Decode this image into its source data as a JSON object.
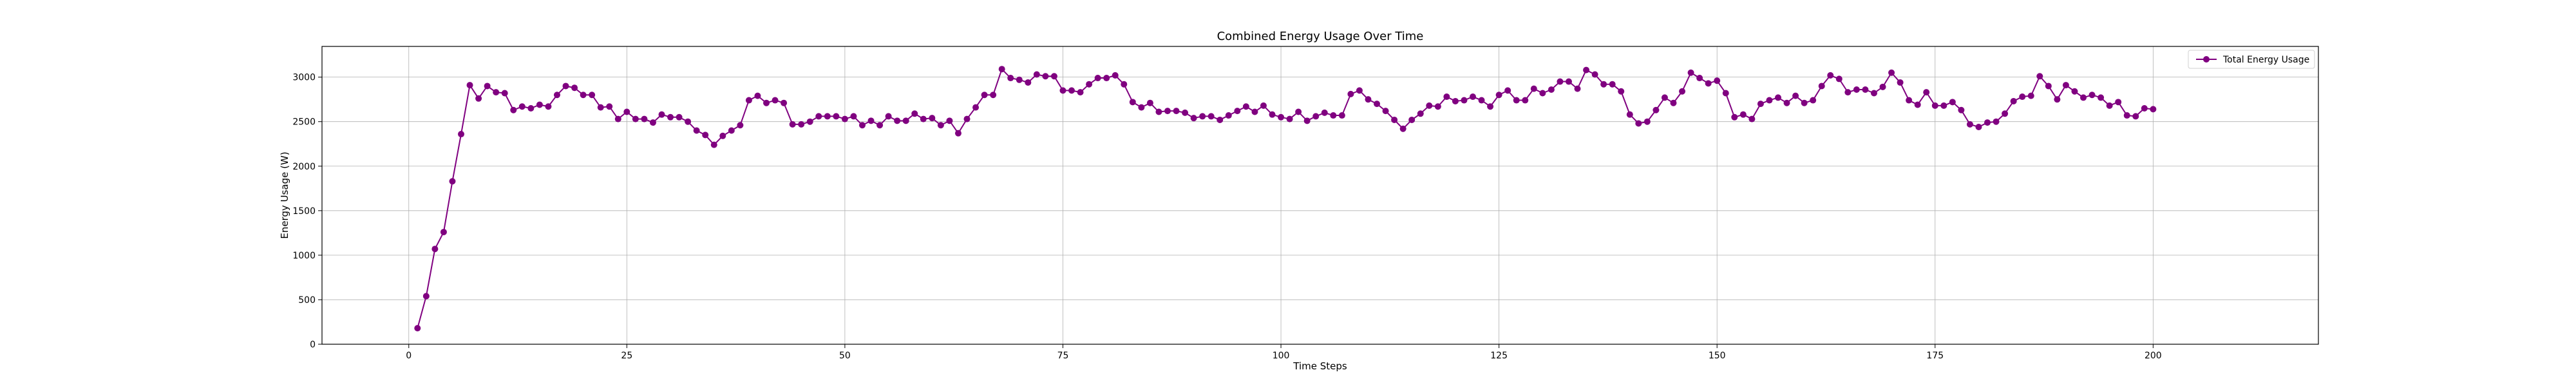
{
  "chart_data": {
    "type": "line",
    "title": "Combined Energy Usage Over Time",
    "xlabel": "Time Steps",
    "ylabel": "Energy Usage (W)",
    "xlim": [
      -9.95,
      218.95
    ],
    "ylim": [
      0,
      3345
    ],
    "x_ticks": [
      0,
      25,
      50,
      75,
      100,
      125,
      150,
      175,
      200
    ],
    "y_ticks": [
      0,
      500,
      1000,
      1500,
      2000,
      2500,
      3000
    ],
    "grid": true,
    "legend": {
      "position": "top-right",
      "entries": [
        "Total Energy Usage"
      ]
    },
    "colors": {
      "line": "#800080",
      "grid": "#b0b0b0",
      "axes": "#000000"
    },
    "series": [
      {
        "name": "Total Energy Usage",
        "marker": "circle",
        "x": [
          1,
          2,
          3,
          4,
          5,
          6,
          7,
          8,
          9,
          10,
          11,
          12,
          13,
          14,
          15,
          16,
          17,
          18,
          19,
          20,
          21,
          22,
          23,
          24,
          25,
          26,
          27,
          28,
          29,
          30,
          31,
          32,
          33,
          34,
          35,
          36,
          37,
          38,
          39,
          40,
          41,
          42,
          43,
          44,
          45,
          46,
          47,
          48,
          49,
          50,
          51,
          52,
          53,
          54,
          55,
          56,
          57,
          58,
          59,
          60,
          61,
          62,
          63,
          64,
          65,
          66,
          67,
          68,
          69,
          70,
          71,
          72,
          73,
          74,
          75,
          76,
          77,
          78,
          79,
          80,
          81,
          82,
          83,
          84,
          85,
          86,
          87,
          88,
          89,
          90,
          91,
          92,
          93,
          94,
          95,
          96,
          97,
          98,
          99,
          100,
          101,
          102,
          103,
          104,
          105,
          106,
          107,
          108,
          109,
          110,
          111,
          112,
          113,
          114,
          115,
          116,
          117,
          118,
          119,
          120,
          121,
          122,
          123,
          124,
          125,
          126,
          127,
          128,
          129,
          130,
          131,
          132,
          133,
          134,
          135,
          136,
          137,
          138,
          139,
          140,
          141,
          142,
          143,
          144,
          145,
          146,
          147,
          148,
          149,
          150,
          151,
          152,
          153,
          154,
          155,
          156,
          157,
          158,
          159,
          160,
          161,
          162,
          163,
          164,
          165,
          166,
          167,
          168,
          169,
          170,
          171,
          172,
          173,
          174,
          175,
          176,
          177,
          178,
          179,
          180,
          181,
          182,
          183,
          184,
          185,
          186,
          187,
          188,
          189,
          190,
          191,
          192,
          193,
          194,
          195,
          196,
          197,
          198,
          199,
          200
        ],
        "values": [
          180,
          540,
          1070,
          1260,
          1830,
          2360,
          2910,
          2760,
          2900,
          2830,
          2820,
          2630,
          2670,
          2650,
          2690,
          2670,
          2800,
          2900,
          2880,
          2800,
          2800,
          2660,
          2670,
          2530,
          2610,
          2530,
          2530,
          2490,
          2580,
          2550,
          2550,
          2500,
          2400,
          2350,
          2240,
          2340,
          2400,
          2460,
          2740,
          2790,
          2710,
          2740,
          2710,
          2470,
          2470,
          2500,
          2560,
          2560,
          2560,
          2530,
          2560,
          2460,
          2510,
          2460,
          2560,
          2510,
          2510,
          2590,
          2530,
          2540,
          2460,
          2510,
          2370,
          2530,
          2660,
          2800,
          2800,
          3090,
          2990,
          2970,
          2940,
          3030,
          3010,
          3010,
          2850,
          2850,
          2830,
          2920,
          2990,
          2990,
          3020,
          2920,
          2720,
          2660,
          2710,
          2610,
          2620,
          2620,
          2600,
          2540,
          2560,
          2560,
          2520,
          2570,
          2620,
          2670,
          2610,
          2680,
          2580,
          2550,
          2530,
          2610,
          2510,
          2560,
          2600,
          2570,
          2570,
          2810,
          2850,
          2750,
          2700,
          2620,
          2520,
          2420,
          2520,
          2590,
          2680,
          2670,
          2780,
          2730,
          2740,
          2780,
          2740,
          2670,
          2800,
          2850,
          2740,
          2740,
          2870,
          2820,
          2860,
          2950,
          2950,
          2870,
          3080,
          3030,
          2920,
          2920,
          2840,
          2580,
          2480,
          2500,
          2630,
          2770,
          2710,
          2840,
          3050,
          2990,
          2930,
          2960,
          2820,
          2550,
          2580,
          2530,
          2700,
          2740,
          2770,
          2710,
          2790,
          2710,
          2740,
          2900,
          3020,
          2980,
          2830,
          2860,
          2860,
          2820,
          2890,
          3050,
          2940,
          2740,
          2690,
          2830,
          2680,
          2680,
          2720,
          2630,
          2470,
          2440,
          2490,
          2500,
          2590,
          2730,
          2780,
          2790,
          3010,
          2900,
          2750,
          2910,
          2840,
          2770,
          2800,
          2770,
          2680,
          2720,
          2570,
          2560,
          2650,
          2640
        ]
      }
    ]
  }
}
